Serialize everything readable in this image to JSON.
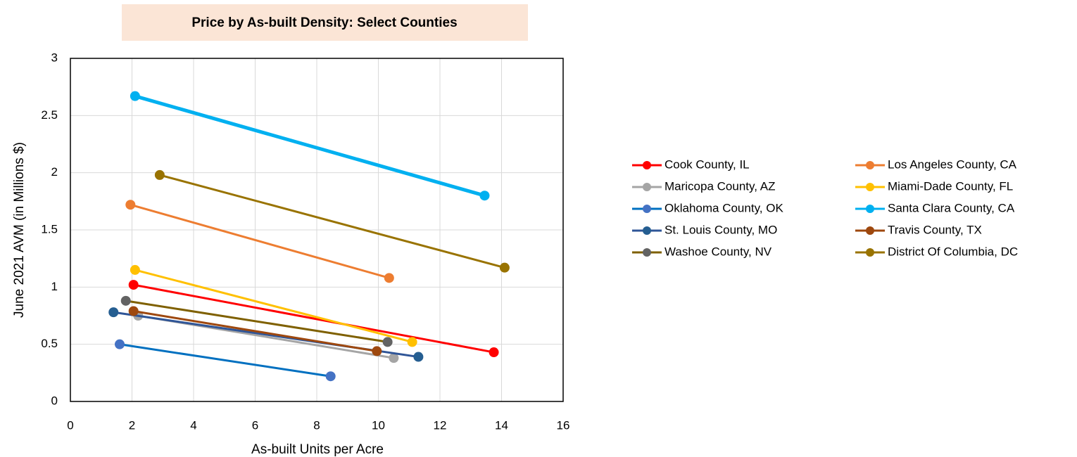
{
  "chart_data": {
    "type": "scatter-line",
    "title": "Price by As-built Density: Select Counties",
    "x_label": "As-built Units per Acre",
    "y_label": "June 2021 AVM  (in Millions $)",
    "xlim": [
      0,
      16
    ],
    "xticks": [
      0,
      2,
      4,
      6,
      8,
      10,
      12,
      14,
      16
    ],
    "ylim": [
      0,
      3
    ],
    "yticks": [
      0,
      0.5,
      1,
      1.5,
      2,
      2.5,
      3
    ],
    "series": [
      {
        "name": "Cook County, IL",
        "color": "#ff0000",
        "marker_color": "#ff0000",
        "x": [
          2.05,
          13.75
        ],
        "values": [
          1.02,
          0.43
        ]
      },
      {
        "name": "Los Angeles County, CA",
        "color": "#ed7d31",
        "marker_color": "#ed7d31",
        "x": [
          1.95,
          10.35
        ],
        "values": [
          1.72,
          1.08
        ]
      },
      {
        "name": "Maricopa County, AZ",
        "color": "#a5a5a5",
        "marker_color": "#a5a5a5",
        "x": [
          2.2,
          10.5
        ],
        "values": [
          0.75,
          0.38
        ]
      },
      {
        "name": "Miami-Dade County, FL",
        "color": "#ffc000",
        "marker_color": "#ffc000",
        "x": [
          2.1,
          11.1
        ],
        "values": [
          1.15,
          0.52
        ]
      },
      {
        "name": "Oklahoma County, OK",
        "color": "#0070c0",
        "marker_color": "#4472c4",
        "x": [
          1.6,
          8.45
        ],
        "values": [
          0.5,
          0.22
        ]
      },
      {
        "name": "Santa Clara County, CA",
        "color": "#00b0f0",
        "marker_color": "#00b0f0",
        "x": [
          2.1,
          13.45
        ],
        "values": [
          2.67,
          1.8
        ]
      },
      {
        "name": "St. Louis County, MO",
        "color": "#2f5597",
        "marker_color": "#255e91",
        "x": [
          1.4,
          11.3
        ],
        "values": [
          0.78,
          0.39
        ]
      },
      {
        "name": "Travis County, TX",
        "color": "#9e480e",
        "marker_color": "#9e480e",
        "x": [
          2.05,
          9.95
        ],
        "values": [
          0.79,
          0.44
        ]
      },
      {
        "name": "Washoe County, NV",
        "color": "#7f6000",
        "marker_color": "#636363",
        "x": [
          1.8,
          10.3
        ],
        "values": [
          0.88,
          0.52
        ]
      },
      {
        "name": "District Of Columbia, DC",
        "color": "#997300",
        "marker_color": "#997300",
        "x": [
          2.9,
          14.1
        ],
        "values": [
          1.98,
          1.17
        ]
      }
    ]
  }
}
